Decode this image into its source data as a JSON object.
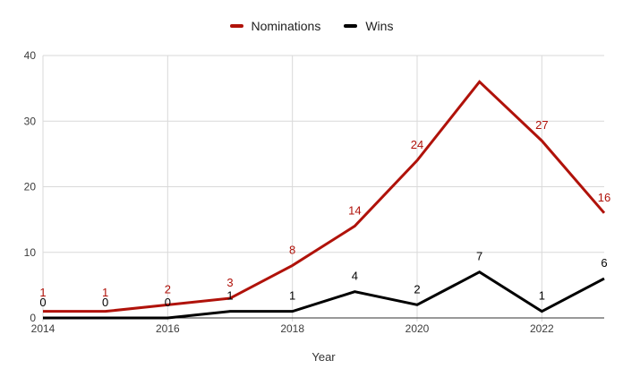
{
  "chart_data": {
    "type": "line",
    "title": "",
    "xlabel": "Year",
    "ylabel": "",
    "legend_position": "top",
    "grid": true,
    "x": [
      2014,
      2015,
      2016,
      2017,
      2018,
      2019,
      2020,
      2021,
      2022,
      2023
    ],
    "x_ticks": [
      {
        "index": 0,
        "label": "2014"
      },
      {
        "index": 2,
        "label": "2016"
      },
      {
        "index": 4,
        "label": "2018"
      },
      {
        "index": 6,
        "label": "2020"
      },
      {
        "index": 8,
        "label": "2022"
      }
    ],
    "y_ticks": [
      {
        "value": 0,
        "label": "0"
      },
      {
        "value": 10,
        "label": "10"
      },
      {
        "value": 20,
        "label": "20"
      },
      {
        "value": 30,
        "label": "30"
      },
      {
        "value": 40,
        "label": "40"
      }
    ],
    "ylim": [
      0,
      40
    ],
    "series": [
      {
        "name": "Nominations",
        "color": "#B0120A",
        "values": [
          1,
          1,
          2,
          3,
          8,
          14,
          24,
          36,
          27,
          16
        ],
        "point_labels": [
          "1",
          "1",
          "2",
          "3",
          "8",
          "14",
          "24",
          "",
          "27",
          "16"
        ]
      },
      {
        "name": "Wins",
        "color": "#000000",
        "values": [
          0,
          0,
          0,
          1,
          1,
          4,
          2,
          7,
          1,
          6
        ],
        "point_labels": [
          "0",
          "0",
          "0",
          "1",
          "1",
          "4",
          "2",
          "7",
          "1",
          "6"
        ]
      }
    ],
    "colors": {
      "grid": "#D9D9D9",
      "axis_line": "#333333",
      "axis_text": "#3C3C3C",
      "background": "#FFFFFF"
    }
  }
}
